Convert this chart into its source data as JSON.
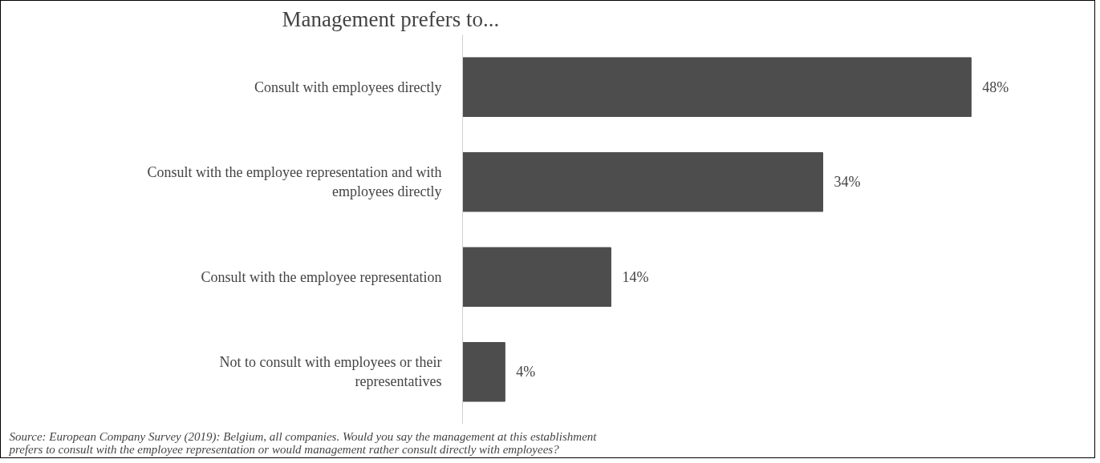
{
  "chart_data": {
    "type": "bar",
    "orientation": "horizontal",
    "relative": false,
    "title": "Management prefers to...",
    "categories": [
      "Consult with employees directly",
      "Consult with the employee representation and with employees directly",
      "Consult with the employee representation",
      "Not to consult with employees or their representatives"
    ],
    "values": [
      48,
      34,
      14,
      4
    ],
    "value_labels": [
      "48%",
      "34%",
      "14%",
      "4%"
    ],
    "color": "#4d4d4d",
    "grid": false,
    "annotations": [
      "Source: European Company Survey (2019): Belgium, all companies. Would you say the management at this establishment prefers to consult with the employee representation or would management rather consult directly with employees?"
    ]
  }
}
